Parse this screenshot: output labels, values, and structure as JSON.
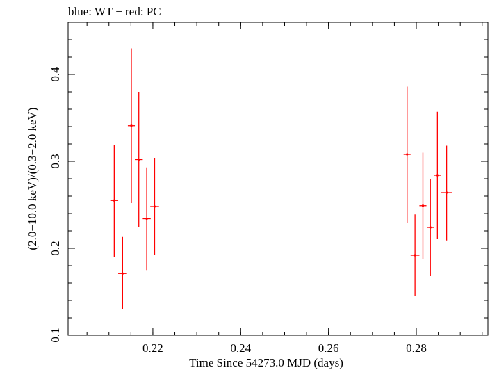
{
  "chart_data": {
    "type": "scatter",
    "title": "blue: WT − red: PC",
    "xlabel": "Time Since 54273.0 MJD (days)",
    "ylabel": "(2.0−10.0 keV)/(0.3−2.0 keV)",
    "xlim": [
      0.2007,
      0.2963
    ],
    "ylim": [
      0.1,
      0.46
    ],
    "x_ticks": [
      0.22,
      0.24,
      0.26,
      0.28
    ],
    "x_tick_labels": [
      "0.22",
      "0.24",
      "0.26",
      "0.28"
    ],
    "y_ticks": [
      0.1,
      0.2,
      0.3,
      0.4
    ],
    "y_tick_labels": [
      "0.1",
      "0.2",
      "0.3",
      "0.4"
    ],
    "grid": false,
    "series": [
      {
        "name": "PC",
        "color": "#ff0000",
        "points": [
          {
            "x": 0.2112,
            "y": 0.255,
            "xerr": 0.0009,
            "ylo": 0.19,
            "yhi": 0.319
          },
          {
            "x": 0.2131,
            "y": 0.171,
            "xerr": 0.001,
            "ylo": 0.13,
            "yhi": 0.213
          },
          {
            "x": 0.2151,
            "y": 0.341,
            "xerr": 0.0008,
            "ylo": 0.252,
            "yhi": 0.43
          },
          {
            "x": 0.2168,
            "y": 0.302,
            "xerr": 0.0009,
            "ylo": 0.224,
            "yhi": 0.38
          },
          {
            "x": 0.2186,
            "y": 0.234,
            "xerr": 0.0009,
            "ylo": 0.175,
            "yhi": 0.293
          },
          {
            "x": 0.2204,
            "y": 0.248,
            "xerr": 0.001,
            "ylo": 0.192,
            "yhi": 0.304
          },
          {
            "x": 0.2779,
            "y": 0.308,
            "xerr": 0.0008,
            "ylo": 0.229,
            "yhi": 0.386
          },
          {
            "x": 0.2797,
            "y": 0.192,
            "xerr": 0.001,
            "ylo": 0.145,
            "yhi": 0.239
          },
          {
            "x": 0.2815,
            "y": 0.249,
            "xerr": 0.0008,
            "ylo": 0.188,
            "yhi": 0.31
          },
          {
            "x": 0.2832,
            "y": 0.224,
            "xerr": 0.0008,
            "ylo": 0.168,
            "yhi": 0.28
          },
          {
            "x": 0.2848,
            "y": 0.284,
            "xerr": 0.0008,
            "ylo": 0.211,
            "yhi": 0.357
          },
          {
            "x": 0.2869,
            "y": 0.264,
            "xerr": 0.0013,
            "ylo": 0.209,
            "yhi": 0.318
          }
        ]
      }
    ]
  }
}
